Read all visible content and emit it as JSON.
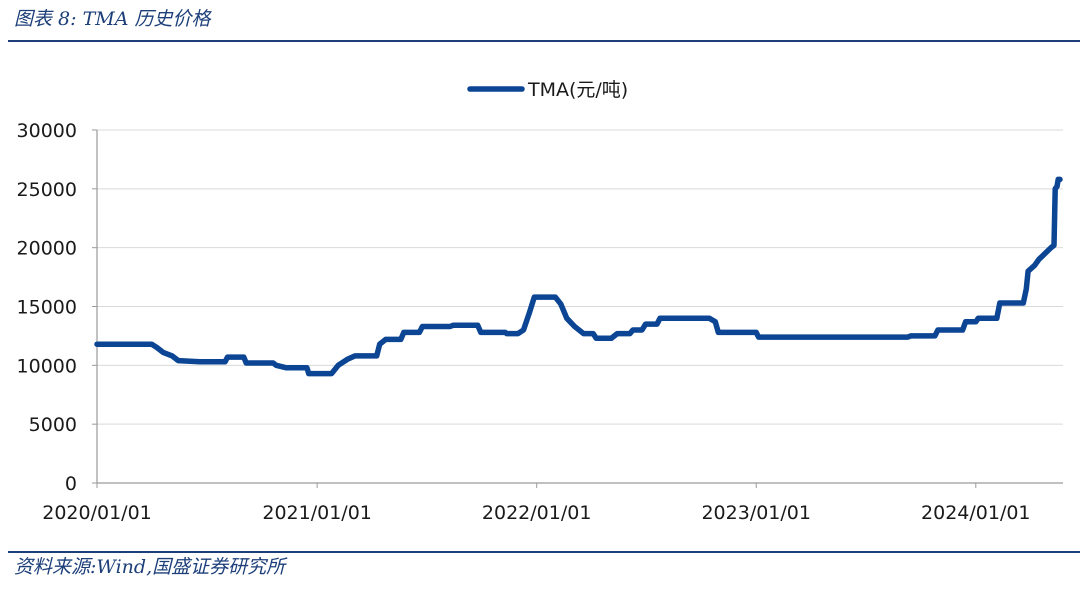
{
  "figure": {
    "caption": "图表 8:  TMA 历史价格",
    "source": "资料来源:Wind,国盛证券研究所"
  },
  "colors": {
    "series": "#0b4594",
    "rule": "#1c3f7a",
    "grid": "#d9d9d9",
    "axis": "#9a9a9a"
  },
  "chart_data": {
    "type": "line",
    "title": "",
    "xlabel": "",
    "ylabel": "",
    "ylim": [
      0,
      30000
    ],
    "yticks": [
      0,
      5000,
      10000,
      15000,
      20000,
      25000,
      30000
    ],
    "xlim": [
      "2020-01-01",
      "2024-05-25"
    ],
    "xticks": [
      "2020/01/01",
      "2021/01/01",
      "2022/01/01",
      "2023/01/01",
      "2024/01/01"
    ],
    "grid": "horizontal",
    "legend": "top-center",
    "series": [
      {
        "name": "TMA(元/吨)",
        "points": [
          [
            "2020-01-01",
            11800
          ],
          [
            "2020-04-01",
            11800
          ],
          [
            "2020-04-10",
            11500
          ],
          [
            "2020-04-20",
            11100
          ],
          [
            "2020-05-05",
            10800
          ],
          [
            "2020-05-15",
            10400
          ],
          [
            "2020-06-20",
            10300
          ],
          [
            "2020-08-01",
            10300
          ],
          [
            "2020-08-05",
            10700
          ],
          [
            "2020-09-01",
            10700
          ],
          [
            "2020-09-05",
            10200
          ],
          [
            "2020-10-20",
            10200
          ],
          [
            "2020-10-25",
            10000
          ],
          [
            "2020-11-10",
            9800
          ],
          [
            "2020-12-15",
            9800
          ],
          [
            "2020-12-18",
            9300
          ],
          [
            "2021-01-25",
            9300
          ],
          [
            "2021-02-05",
            10000
          ],
          [
            "2021-02-20",
            10500
          ],
          [
            "2021-03-05",
            10800
          ],
          [
            "2021-04-10",
            10800
          ],
          [
            "2021-04-15",
            11800
          ],
          [
            "2021-04-25",
            12200
          ],
          [
            "2021-05-20",
            12200
          ],
          [
            "2021-05-25",
            12800
          ],
          [
            "2021-06-20",
            12800
          ],
          [
            "2021-06-25",
            13300
          ],
          [
            "2021-08-10",
            13300
          ],
          [
            "2021-08-15",
            13400
          ],
          [
            "2021-09-25",
            13400
          ],
          [
            "2021-09-30",
            12800
          ],
          [
            "2021-11-10",
            12800
          ],
          [
            "2021-11-12",
            12700
          ],
          [
            "2021-12-01",
            12700
          ],
          [
            "2021-12-10",
            13000
          ],
          [
            "2021-12-20",
            14500
          ],
          [
            "2021-12-28",
            15800
          ],
          [
            "2022-02-01",
            15800
          ],
          [
            "2022-02-10",
            15200
          ],
          [
            "2022-02-20",
            14000
          ],
          [
            "2022-03-05",
            13300
          ],
          [
            "2022-03-20",
            12700
          ],
          [
            "2022-04-05",
            12700
          ],
          [
            "2022-04-10",
            12300
          ],
          [
            "2022-05-05",
            12300
          ],
          [
            "2022-05-15",
            12700
          ],
          [
            "2022-06-05",
            12700
          ],
          [
            "2022-06-10",
            13000
          ],
          [
            "2022-06-25",
            13000
          ],
          [
            "2022-07-01",
            13500
          ],
          [
            "2022-07-20",
            13500
          ],
          [
            "2022-07-25",
            14000
          ],
          [
            "2022-10-15",
            14000
          ],
          [
            "2022-10-25",
            13700
          ],
          [
            "2022-10-30",
            12800
          ],
          [
            "2023-01-01",
            12800
          ],
          [
            "2023-01-05",
            12400
          ],
          [
            "2023-09-10",
            12400
          ],
          [
            "2023-09-15",
            12500
          ],
          [
            "2023-10-25",
            12500
          ],
          [
            "2023-10-30",
            13000
          ],
          [
            "2023-12-10",
            13000
          ],
          [
            "2023-12-15",
            13700
          ],
          [
            "2024-01-01",
            13700
          ],
          [
            "2024-01-05",
            14000
          ],
          [
            "2024-02-05",
            14000
          ],
          [
            "2024-02-10",
            15300
          ],
          [
            "2024-03-20",
            15300
          ],
          [
            "2024-03-25",
            16500
          ],
          [
            "2024-03-28",
            18000
          ],
          [
            "2024-04-08",
            18500
          ],
          [
            "2024-04-15",
            19000
          ],
          [
            "2024-04-25",
            19500
          ],
          [
            "2024-05-05",
            20000
          ],
          [
            "2024-05-10",
            20200
          ],
          [
            "2024-05-12",
            25000
          ],
          [
            "2024-05-15",
            25200
          ],
          [
            "2024-05-17",
            25800
          ],
          [
            "2024-05-20",
            25800
          ]
        ]
      }
    ]
  }
}
